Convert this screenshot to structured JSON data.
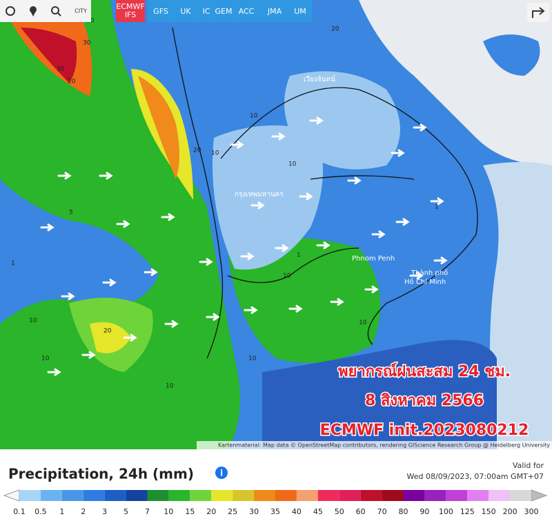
{
  "toolbar": {
    "city_button": "CITY",
    "active_model": {
      "line1": "ECMWF",
      "line2": "IFS"
    },
    "models": [
      "GFS",
      "UK",
      "IC",
      "GEM",
      "ACC",
      "JMA",
      "UM"
    ]
  },
  "map": {
    "places": [
      "เวียงจันทน์",
      "กรุงเทพมหานคร",
      "Phnom Penh",
      "Thành phố",
      "Hồ Chí Minh"
    ],
    "contour_labels": [
      "30",
      "20",
      "30",
      "20",
      "20",
      "10",
      "10",
      "20",
      "10",
      "1",
      "5",
      "10",
      "10",
      "1",
      "10",
      "1",
      "10",
      "20",
      "10",
      "10"
    ],
    "overlay": {
      "line1": "พยากรณ์ฝนสะสม 24 ชม.",
      "line2": "8 สิงหาคม 2566",
      "line3": "ECMWF init.2023080212"
    },
    "attribution": "Kartenmaterial: Map data © OpenStreetMap contributors, rendering GIScience Research Group @ Heidelberg University"
  },
  "panel": {
    "title": "Precipitation, 24h (mm)",
    "valid_label": "Valid for",
    "valid_time": "Wed 08/09/2023, 07:00am GMT+07"
  },
  "legend": {
    "levels": [
      0.1,
      0.5,
      1,
      2,
      3,
      5,
      7,
      10,
      15,
      20,
      25,
      30,
      35,
      40,
      45,
      50,
      60,
      70,
      80,
      90,
      100,
      125,
      150,
      200,
      300
    ],
    "colors": [
      "#a6d5f7",
      "#6bb3f0",
      "#4a96e8",
      "#2f7de0",
      "#1d5fc9",
      "#12449f",
      "#1d8f2f",
      "#2ab52a",
      "#6fd43a",
      "#e6e62a",
      "#d6c62a",
      "#f08a1a",
      "#f06a1a",
      "#f5a070",
      "#f02a5a",
      "#e0205a",
      "#c0102a",
      "#a00a1a",
      "#7a00a0",
      "#9a20c0",
      "#c040d8",
      "#e080f0",
      "#f0c0f8",
      "#d8d8d8"
    ]
  }
}
